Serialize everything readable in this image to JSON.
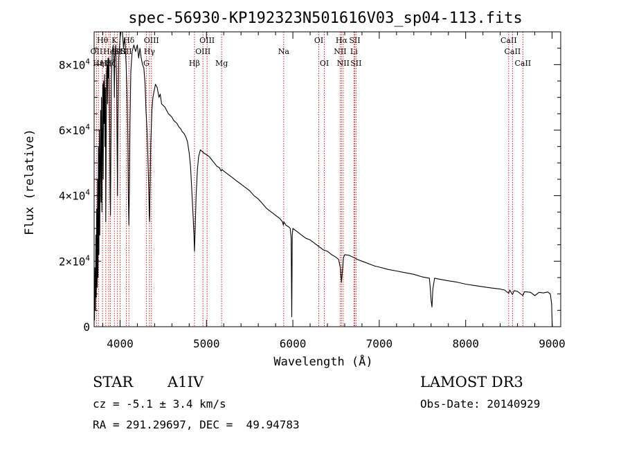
{
  "chart_data": {
    "type": "line",
    "title": "spec-56930-KP192323N501616V03_sp04-113.fits",
    "xlabel": "Wavelength (Å)",
    "ylabel": "Flux (relative)",
    "xlim": [
      3700,
      9100
    ],
    "ylim": [
      0,
      90000
    ],
    "x_ticks": [
      {
        "value": 4000,
        "label": "4000"
      },
      {
        "value": 5000,
        "label": "5000"
      },
      {
        "value": 6000,
        "label": "6000"
      },
      {
        "value": 7000,
        "label": "7000"
      },
      {
        "value": 8000,
        "label": "8000"
      },
      {
        "value": 9000,
        "label": "9000"
      }
    ],
    "y_ticks": [
      {
        "value": 0,
        "mantissa": "0",
        "exp": ""
      },
      {
        "value": 20000,
        "mantissa": "2×10",
        "exp": "4"
      },
      {
        "value": 40000,
        "mantissa": "4×10",
        "exp": "4"
      },
      {
        "value": 60000,
        "mantissa": "6×10",
        "exp": "4"
      },
      {
        "value": 80000,
        "mantissa": "8×10",
        "exp": "4"
      }
    ],
    "line_list": [
      {
        "wave": 3727,
        "label": "OII",
        "row": 2
      },
      {
        "wave": 3750,
        "label": "Hη",
        "row": 3
      },
      {
        "wave": 3797,
        "label": "Hθ",
        "row": 1
      },
      {
        "wave": 3835,
        "label": "Hη",
        "row": 3
      },
      {
        "wave": 3869,
        "label": "He",
        "row": 2
      },
      {
        "wave": 3889,
        "label": "Hζ",
        "row": 3
      },
      {
        "wave": 3934,
        "label": "K",
        "row": 1
      },
      {
        "wave": 3970,
        "label": "Hε",
        "row": 2
      },
      {
        "wave": 4000,
        "label": "SII",
        "row": 2
      },
      {
        "wave": 4102,
        "label": "Hδ",
        "row": 1
      },
      {
        "wave": 4072,
        "label": "SII",
        "row": 2
      },
      {
        "wave": 4304,
        "label": "G",
        "row": 3
      },
      {
        "wave": 4340,
        "label": "Hγ",
        "row": 2
      },
      {
        "wave": 4363,
        "label": "OIII",
        "row": 1
      },
      {
        "wave": 4861,
        "label": "Hβ",
        "row": 3
      },
      {
        "wave": 4959,
        "label": "OIII",
        "row": 2
      },
      {
        "wave": 5007,
        "label": "OIII",
        "row": 1
      },
      {
        "wave": 5175,
        "label": "Mg",
        "row": 3
      },
      {
        "wave": 5894,
        "label": "Na",
        "row": 2
      },
      {
        "wave": 6300,
        "label": "OI",
        "row": 1
      },
      {
        "wave": 6364,
        "label": "OI",
        "row": 3
      },
      {
        "wave": 6548,
        "label": "NII",
        "row": 2
      },
      {
        "wave": 6563,
        "label": "Hα",
        "row": 1
      },
      {
        "wave": 6583,
        "label": "NII",
        "row": 3
      },
      {
        "wave": 6707,
        "label": "Li",
        "row": 2
      },
      {
        "wave": 6716,
        "label": "SII",
        "row": 1
      },
      {
        "wave": 6731,
        "label": "SII",
        "row": 3
      },
      {
        "wave": 8498,
        "label": "CaII",
        "row": 1
      },
      {
        "wave": 8542,
        "label": "CaII",
        "row": 2
      },
      {
        "wave": 8662,
        "label": "CaII",
        "row": 3
      }
    ],
    "series": [
      {
        "name": "spectrum",
        "points": [
          [
            3700,
            10000
          ],
          [
            3705,
            2000
          ],
          [
            3710,
            18000
          ],
          [
            3715,
            5000
          ],
          [
            3720,
            28000
          ],
          [
            3725,
            9000
          ],
          [
            3730,
            36000
          ],
          [
            3735,
            12000
          ],
          [
            3740,
            45000
          ],
          [
            3745,
            15000
          ],
          [
            3750,
            55000
          ],
          [
            3755,
            22000
          ],
          [
            3760,
            60000
          ],
          [
            3765,
            28000
          ],
          [
            3770,
            50000
          ],
          [
            3775,
            66000
          ],
          [
            3780,
            38000
          ],
          [
            3785,
            70000
          ],
          [
            3790,
            35000
          ],
          [
            3795,
            58000
          ],
          [
            3800,
            74000
          ],
          [
            3805,
            45000
          ],
          [
            3810,
            75000
          ],
          [
            3815,
            62000
          ],
          [
            3820,
            77000
          ],
          [
            3825,
            55000
          ],
          [
            3830,
            73000
          ],
          [
            3835,
            32000
          ],
          [
            3840,
            62000
          ],
          [
            3845,
            78000
          ],
          [
            3850,
            80000
          ],
          [
            3855,
            68000
          ],
          [
            3860,
            82000
          ],
          [
            3865,
            76000
          ],
          [
            3870,
            82000
          ],
          [
            3875,
            72000
          ],
          [
            3880,
            60000
          ],
          [
            3885,
            40000
          ],
          [
            3889,
            34000
          ],
          [
            3893,
            52000
          ],
          [
            3900,
            76000
          ],
          [
            3910,
            84000
          ],
          [
            3920,
            86000
          ],
          [
            3930,
            80000
          ],
          [
            3934,
            70000
          ],
          [
            3938,
            82000
          ],
          [
            3950,
            86000
          ],
          [
            3960,
            74000
          ],
          [
            3970,
            40000
          ],
          [
            3975,
            62000
          ],
          [
            3985,
            82000
          ],
          [
            4000,
            88000
          ],
          [
            4010,
            90000
          ],
          [
            4020,
            92000
          ],
          [
            4030,
            89000
          ],
          [
            4040,
            85000
          ],
          [
            4050,
            88000
          ],
          [
            4060,
            86000
          ],
          [
            4070,
            80000
          ],
          [
            4080,
            72000
          ],
          [
            4090,
            58000
          ],
          [
            4096,
            40000
          ],
          [
            4102,
            31000
          ],
          [
            4108,
            42000
          ],
          [
            4115,
            62000
          ],
          [
            4125,
            78000
          ],
          [
            4140,
            84000
          ],
          [
            4160,
            86000
          ],
          [
            4180,
            84000
          ],
          [
            4200,
            86000
          ],
          [
            4215,
            82000
          ],
          [
            4230,
            85000
          ],
          [
            4245,
            82000
          ],
          [
            4260,
            80000
          ],
          [
            4275,
            79000
          ],
          [
            4290,
            74000
          ],
          [
            4300,
            66000
          ],
          [
            4312,
            60000
          ],
          [
            4322,
            52000
          ],
          [
            4332,
            42000
          ],
          [
            4338,
            34000
          ],
          [
            4342,
            32000
          ],
          [
            4346,
            40000
          ],
          [
            4355,
            56000
          ],
          [
            4368,
            66000
          ],
          [
            4380,
            70000
          ],
          [
            4395,
            72000
          ],
          [
            4410,
            74000
          ],
          [
            4430,
            73000
          ],
          [
            4450,
            70000
          ],
          [
            4465,
            71000
          ],
          [
            4480,
            68000
          ],
          [
            4500,
            67500
          ],
          [
            4520,
            67000
          ],
          [
            4540,
            66000
          ],
          [
            4560,
            65000
          ],
          [
            4580,
            64500
          ],
          [
            4600,
            64000
          ],
          [
            4620,
            63000
          ],
          [
            4640,
            62500
          ],
          [
            4660,
            62000
          ],
          [
            4680,
            61000
          ],
          [
            4700,
            60500
          ],
          [
            4720,
            59500
          ],
          [
            4740,
            59000
          ],
          [
            4760,
            58000
          ],
          [
            4780,
            56500
          ],
          [
            4800,
            53000
          ],
          [
            4815,
            49000
          ],
          [
            4830,
            42000
          ],
          [
            4845,
            34000
          ],
          [
            4855,
            28000
          ],
          [
            4861,
            23000
          ],
          [
            4867,
            28000
          ],
          [
            4880,
            40000
          ],
          [
            4895,
            48000
          ],
          [
            4910,
            52000
          ],
          [
            4930,
            54000
          ],
          [
            4950,
            53500
          ],
          [
            4970,
            53000
          ],
          [
            5000,
            52500
          ],
          [
            5030,
            52000
          ],
          [
            5060,
            51000
          ],
          [
            5090,
            50000
          ],
          [
            5120,
            49000
          ],
          [
            5150,
            48500
          ],
          [
            5170,
            47500
          ],
          [
            5180,
            48000
          ],
          [
            5200,
            47500
          ],
          [
            5250,
            46500
          ],
          [
            5300,
            45500
          ],
          [
            5350,
            44500
          ],
          [
            5400,
            43500
          ],
          [
            5450,
            42500
          ],
          [
            5500,
            41500
          ],
          [
            5550,
            40000
          ],
          [
            5600,
            39000
          ],
          [
            5650,
            37500
          ],
          [
            5700,
            36000
          ],
          [
            5750,
            35000
          ],
          [
            5800,
            34000
          ],
          [
            5850,
            33000
          ],
          [
            5880,
            32000
          ],
          [
            5890,
            31000
          ],
          [
            5896,
            32000
          ],
          [
            5920,
            31000
          ],
          [
            5950,
            30500
          ],
          [
            5970,
            30000
          ],
          [
            5980,
            27000
          ],
          [
            5987,
            3000
          ],
          [
            5993,
            28000
          ],
          [
            6000,
            30000
          ],
          [
            6050,
            29000
          ],
          [
            6100,
            28000
          ],
          [
            6150,
            27000
          ],
          [
            6200,
            26500
          ],
          [
            6250,
            25500
          ],
          [
            6300,
            24500
          ],
          [
            6350,
            23500
          ],
          [
            6400,
            23000
          ],
          [
            6450,
            22000
          ],
          [
            6500,
            21200
          ],
          [
            6530,
            20500
          ],
          [
            6550,
            18000
          ],
          [
            6563,
            13500
          ],
          [
            6572,
            16500
          ],
          [
            6585,
            21000
          ],
          [
            6600,
            22000
          ],
          [
            6650,
            21800
          ],
          [
            6700,
            21200
          ],
          [
            6750,
            20500
          ],
          [
            6800,
            20000
          ],
          [
            6850,
            19500
          ],
          [
            6900,
            19000
          ],
          [
            6950,
            18500
          ],
          [
            7000,
            18200
          ],
          [
            7100,
            17500
          ],
          [
            7200,
            17000
          ],
          [
            7300,
            16500
          ],
          [
            7400,
            16000
          ],
          [
            7500,
            15200
          ],
          [
            7580,
            14800
          ],
          [
            7590,
            12000
          ],
          [
            7600,
            8000
          ],
          [
            7610,
            6000
          ],
          [
            7620,
            11500
          ],
          [
            7640,
            14800
          ],
          [
            7700,
            14500
          ],
          [
            7800,
            14000
          ],
          [
            7900,
            13600
          ],
          [
            8000,
            13000
          ],
          [
            8100,
            12600
          ],
          [
            8200,
            12200
          ],
          [
            8300,
            11800
          ],
          [
            8400,
            11500
          ],
          [
            8450,
            11200
          ],
          [
            8498,
            10200
          ],
          [
            8510,
            11200
          ],
          [
            8542,
            9800
          ],
          [
            8560,
            11000
          ],
          [
            8600,
            10800
          ],
          [
            8662,
            9500
          ],
          [
            8680,
            10700
          ],
          [
            8750,
            10500
          ],
          [
            8800,
            9500
          ],
          [
            8850,
            10500
          ],
          [
            8900,
            10300
          ],
          [
            8950,
            10600
          ],
          [
            8980,
            10000
          ],
          [
            8995,
            7000
          ],
          [
            9000,
            2000
          ],
          [
            9003,
            0
          ]
        ]
      }
    ]
  },
  "footer": {
    "object_class": "STAR",
    "subclass": "A1IV",
    "survey": "LAMOST DR3",
    "redshift_text": "cz = -5.1 ± 3.4 km/s",
    "obs_date": "Obs-Date: 20140929",
    "coords": "RA = 291.29697, DEC =  49.94783"
  }
}
